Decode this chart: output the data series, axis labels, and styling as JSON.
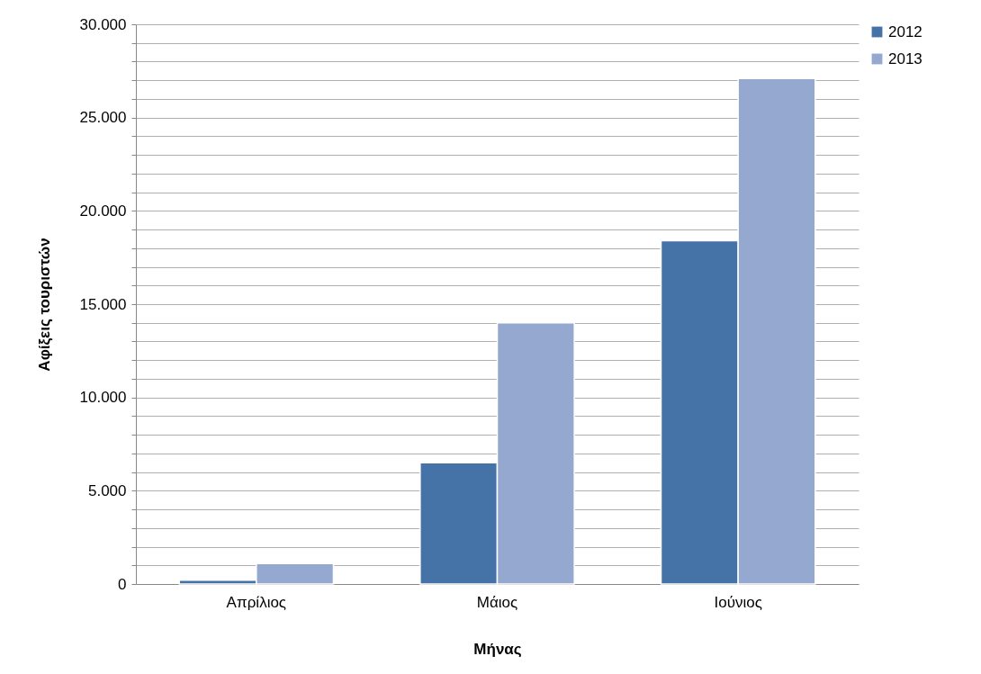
{
  "chart_data": {
    "type": "bar",
    "xlabel": "Μήνας",
    "ylabel": "Αφίξεις τουριστών",
    "categories": [
      "Απρίλιος",
      "Μάιος",
      "Ιούνιος"
    ],
    "series": [
      {
        "name": "2012",
        "color": "#4572a7",
        "values": [
          200,
          6500,
          18400
        ]
      },
      {
        "name": "2013",
        "color": "#95a9d0",
        "values": [
          1100,
          14000,
          27100
        ]
      }
    ],
    "ylim": [
      0,
      30000
    ],
    "yticks": [
      0,
      {
        "value": 1000,
        "label": null
      },
      {
        "value": 2000,
        "label": null
      },
      {
        "value": 3000,
        "label": null
      },
      {
        "value": 4000,
        "label": null
      },
      {
        "value": 5000,
        "label": "5.000"
      },
      {
        "value": 6000,
        "label": null
      },
      {
        "value": 7000,
        "label": null
      },
      {
        "value": 8000,
        "label": null
      },
      {
        "value": 9000,
        "label": null
      },
      {
        "value": 10000,
        "label": "10.000"
      },
      {
        "value": 11000,
        "label": null
      },
      {
        "value": 12000,
        "label": null
      },
      {
        "value": 13000,
        "label": null
      },
      {
        "value": 14000,
        "label": null
      },
      {
        "value": 15000,
        "label": "15.000"
      },
      {
        "value": 16000,
        "label": null
      },
      {
        "value": 17000,
        "label": null
      },
      {
        "value": 18000,
        "label": null
      },
      {
        "value": 19000,
        "label": null
      },
      {
        "value": 20000,
        "label": "20.000"
      },
      {
        "value": 21000,
        "label": null
      },
      {
        "value": 22000,
        "label": null
      },
      {
        "value": 23000,
        "label": null
      },
      {
        "value": 24000,
        "label": null
      },
      {
        "value": 25000,
        "label": "25.000"
      },
      {
        "value": 26000,
        "label": null
      },
      {
        "value": 27000,
        "label": null
      },
      {
        "value": 28000,
        "label": null
      },
      {
        "value": 29000,
        "label": null
      },
      {
        "value": 30000,
        "label": "30.000"
      }
    ],
    "grid": "y",
    "legend": "right"
  }
}
